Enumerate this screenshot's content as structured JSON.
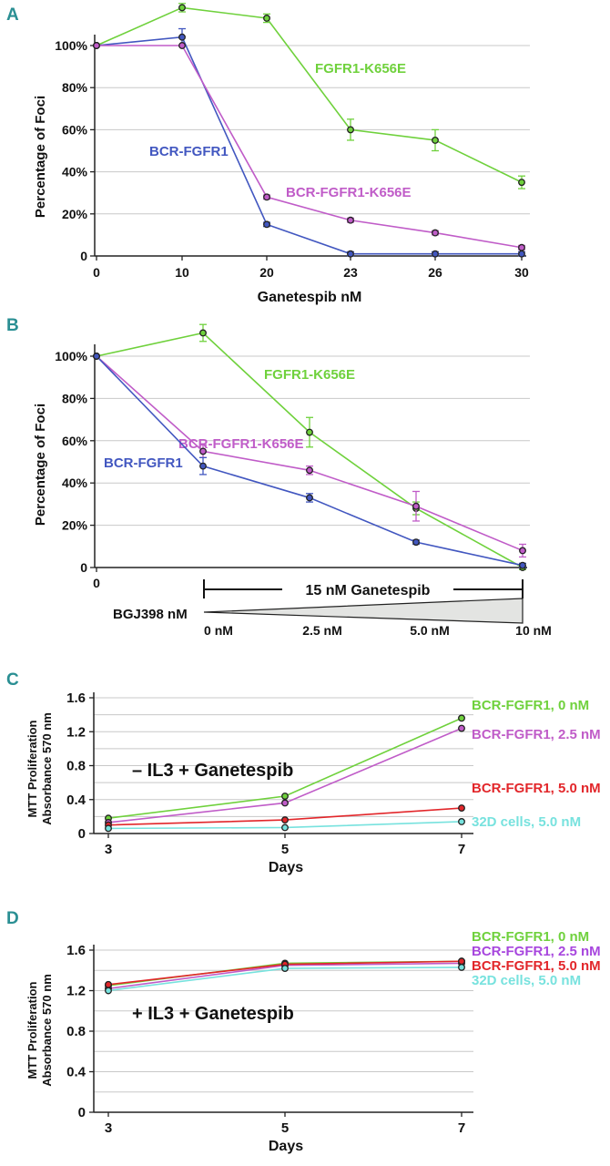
{
  "colors": {
    "green": "#6fd13c",
    "purple": "#c05cc8",
    "blue": "#4257c0",
    "red": "#e2262a",
    "cyan": "#77e2de",
    "violet": "#a746de",
    "panel_letter": "#2a8f93",
    "grid": "#c8c8c8"
  },
  "chart_data": [
    {
      "panel": "A",
      "type": "line",
      "xlabel": "Ganetespib nM",
      "ylabel": "Percentage of Foci",
      "categories": [
        "0",
        "10",
        "20",
        "23",
        "26",
        "30"
      ],
      "y_ticks": [
        "0",
        "20%",
        "40%",
        "60%",
        "80%",
        "100%"
      ],
      "ylim": [
        0,
        100
      ],
      "series": [
        {
          "name": "FGFR1-K656E",
          "values": [
            100,
            118,
            113,
            60,
            55,
            35
          ],
          "errors": [
            0,
            2,
            2,
            5,
            5,
            3
          ]
        },
        {
          "name": "BCR-FGFR1",
          "values": [
            100,
            104,
            15,
            1,
            1,
            1
          ],
          "errors": [
            0,
            4,
            1,
            1,
            1,
            1
          ]
        },
        {
          "name": "BCR-FGFR1-K656E",
          "values": [
            100,
            100,
            28,
            17,
            11,
            4
          ],
          "errors": [
            0,
            0,
            1,
            1,
            1,
            1
          ]
        }
      ]
    },
    {
      "panel": "B",
      "type": "line",
      "ylabel": "Percentage of Foci",
      "categories": [
        "0",
        "0 nM",
        "2.5 nM",
        "5.0 nM",
        "10 nM"
      ],
      "y_ticks": [
        "0",
        "20%",
        "40%",
        "60%",
        "80%",
        "100%"
      ],
      "ylim": [
        0,
        100
      ],
      "bracket_label": "15 nM Ganetespib",
      "wedge_label": "BGJ398 nM",
      "series": [
        {
          "name": "FGFR1-K656E",
          "values": [
            100,
            111,
            64,
            28,
            0
          ],
          "errors": [
            0,
            4,
            7,
            3,
            1
          ]
        },
        {
          "name": "BCR-FGFR1-K656E",
          "values": [
            100,
            55,
            46,
            29,
            8
          ],
          "errors": [
            0,
            3,
            2,
            7,
            3
          ]
        },
        {
          "name": "BCR-FGFR1",
          "values": [
            100,
            48,
            33,
            12,
            1
          ],
          "errors": [
            0,
            4,
            2,
            1,
            1
          ]
        }
      ]
    },
    {
      "panel": "C",
      "type": "line",
      "xlabel": "Days",
      "ylabel_line1": "MTT Proliferation",
      "ylabel_line2": "Absorbance 570 nm",
      "annotation": "– IL3 + Ganetespib",
      "x": [
        3,
        5,
        7
      ],
      "x_ticks": [
        "3",
        "5",
        "7"
      ],
      "y_ticks": [
        "0",
        "0.4",
        "0.8",
        "1.2",
        "1.6"
      ],
      "ylim": [
        0,
        1.6
      ],
      "series": [
        {
          "name": "BCR-FGFR1, 0 nM",
          "values": [
            0.18,
            0.44,
            1.36
          ]
        },
        {
          "name": "BCR-FGFR1, 2.5 nM",
          "values": [
            0.13,
            0.36,
            1.24
          ]
        },
        {
          "name": "BCR-FGFR1, 5.0 nM",
          "values": [
            0.1,
            0.16,
            0.3
          ]
        },
        {
          "name": "32D cells, 5.0 nM",
          "values": [
            0.06,
            0.07,
            0.14
          ]
        }
      ]
    },
    {
      "panel": "D",
      "type": "line",
      "xlabel": "Days",
      "ylabel_line1": "MTT Proliferation",
      "ylabel_line2": "Absorbance 570 nm",
      "annotation": "+ IL3  + Ganetespib",
      "x": [
        3,
        5,
        7
      ],
      "x_ticks": [
        "3",
        "5",
        "7"
      ],
      "y_ticks": [
        "0",
        "0.4",
        "0.8",
        "1.2",
        "1.6"
      ],
      "ylim": [
        0,
        1.6
      ],
      "series": [
        {
          "name": "BCR-FGFR1, 0 nM",
          "values": [
            1.25,
            1.47,
            1.49
          ]
        },
        {
          "name": "BCR-FGFR1, 2.5 nM",
          "values": [
            1.22,
            1.45,
            1.47
          ]
        },
        {
          "name": "BCR-FGFR1, 5.0 nM",
          "values": [
            1.26,
            1.46,
            1.49
          ]
        },
        {
          "name": "32D cells, 5.0 nM",
          "values": [
            1.2,
            1.42,
            1.43
          ]
        }
      ]
    }
  ]
}
